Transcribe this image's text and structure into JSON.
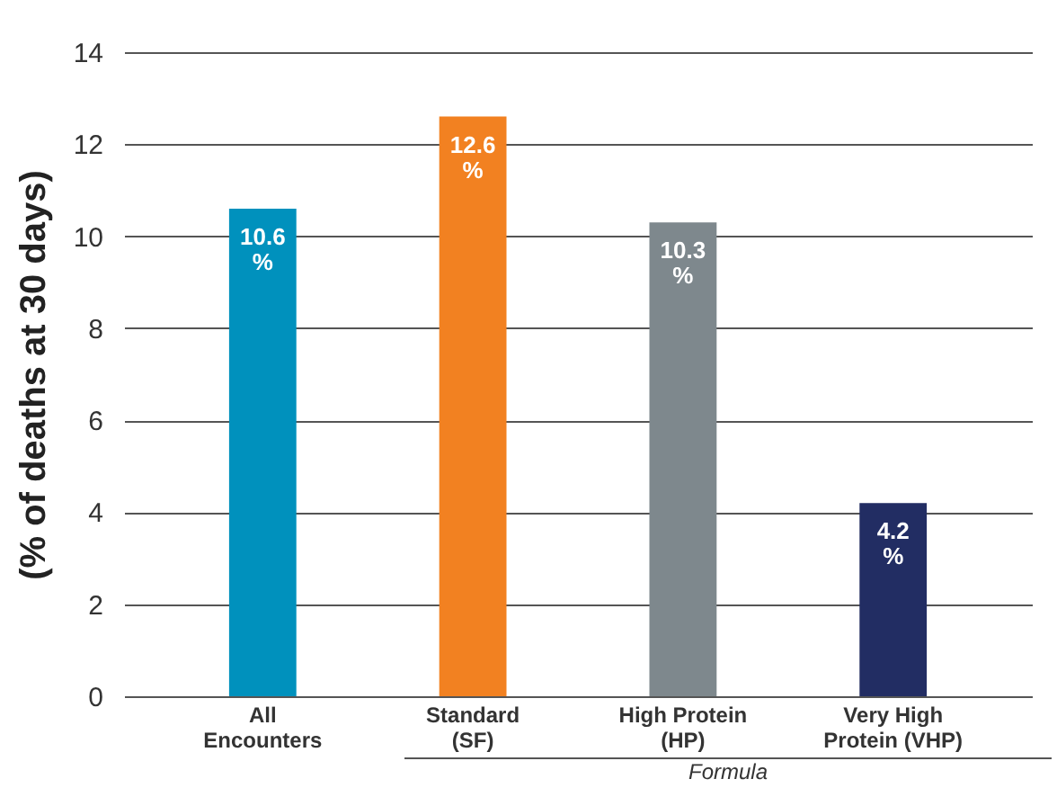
{
  "chart_data": {
    "type": "bar",
    "ylabel": "(% of deaths at 30 days)",
    "categories": [
      "All Encounters",
      "Standard (SF)",
      "High Protein (HP)",
      "Very High Protein (VHP)"
    ],
    "values": [
      10.6,
      12.6,
      10.3,
      4.2
    ],
    "colors": [
      "#0091bd",
      "#f28121",
      "#7e888d",
      "#222d63"
    ],
    "value_labels": [
      "10.6 %",
      "12.6 %",
      "10.3 %",
      "4.2 %"
    ],
    "ylim": [
      0,
      14
    ],
    "yticks": [
      0,
      2,
      4,
      6,
      8,
      10,
      12,
      14
    ],
    "grid": "y",
    "annotations": [
      "Formula"
    ]
  }
}
